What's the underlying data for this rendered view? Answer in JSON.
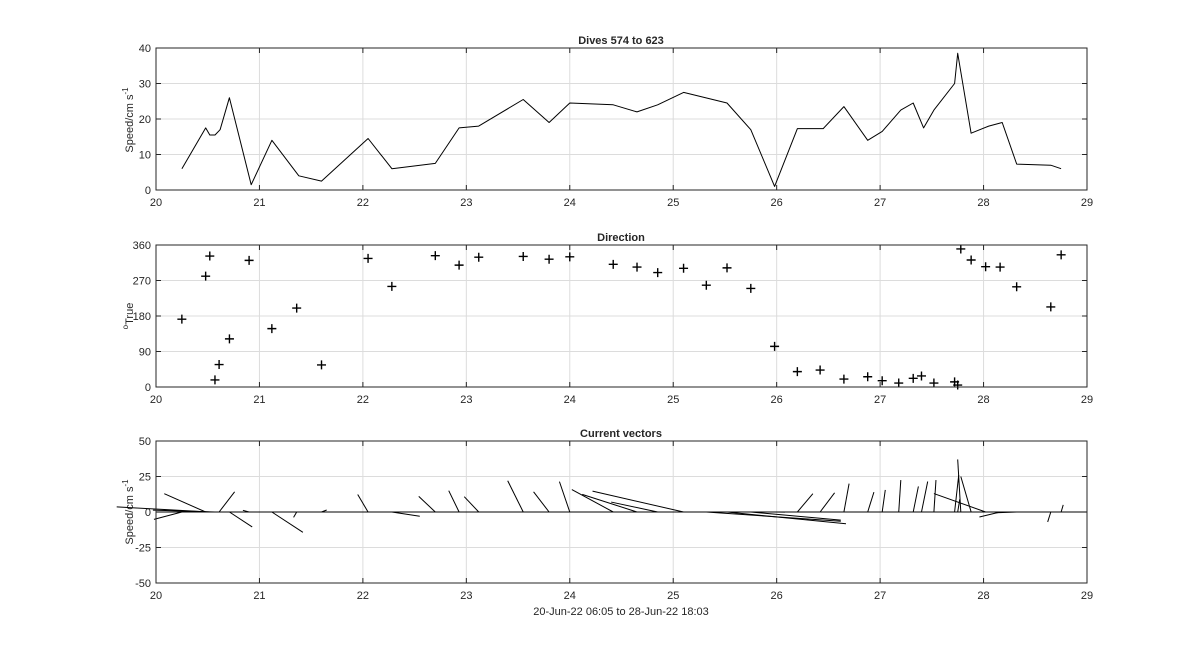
{
  "chart_data": [
    {
      "type": "line",
      "title": "Dives 574 to 623",
      "ylabel": "Speed/cm s",
      "ylabel_superscript": "-1",
      "xlabel": "",
      "xlim": [
        20,
        29
      ],
      "ylim": [
        0,
        40
      ],
      "xticks": [
        "20",
        "21",
        "22",
        "23",
        "24",
        "25",
        "26",
        "27",
        "28",
        "29"
      ],
      "yticks": [
        "0",
        "10",
        "20",
        "30",
        "40"
      ],
      "grid": true,
      "color": "#000000",
      "x": [
        20.25,
        20.48,
        20.52,
        20.57,
        20.62,
        20.71,
        20.92,
        21.12,
        21.38,
        21.6,
        22.05,
        22.28,
        22.7,
        22.93,
        23.12,
        23.55,
        23.8,
        24.0,
        24.42,
        24.65,
        24.85,
        25.1,
        25.52,
        25.75,
        25.98,
        26.2,
        26.45,
        26.65,
        26.88,
        27.02,
        27.2,
        27.32,
        27.42,
        27.52,
        27.72,
        27.75,
        27.88,
        28.05,
        28.18,
        28.32,
        28.65,
        28.75
      ],
      "y": [
        6,
        17.5,
        15.5,
        15.5,
        17,
        26,
        1.5,
        14,
        4,
        2.5,
        14.5,
        6,
        7.5,
        17.5,
        18,
        25.5,
        19,
        24.5,
        24,
        22,
        24,
        27.5,
        24.5,
        17,
        1,
        17.3,
        17.3,
        23.5,
        14,
        16.5,
        22.5,
        24.5,
        17.5,
        22.5,
        30,
        38.5,
        16,
        18,
        19,
        7.3,
        7,
        6
      ]
    },
    {
      "type": "scatter",
      "title": "Direction",
      "ylabel": "True",
      "ylabel_prefix": "o",
      "xlabel": "",
      "xlim": [
        20,
        29
      ],
      "ylim": [
        0,
        360
      ],
      "xticks": [
        "20",
        "21",
        "22",
        "23",
        "24",
        "25",
        "26",
        "27",
        "28",
        "29"
      ],
      "yticks": [
        "0",
        "90",
        "180",
        "270",
        "360"
      ],
      "grid": true,
      "marker": "+",
      "color": "#000000",
      "x": [
        20.25,
        20.48,
        20.52,
        20.57,
        20.61,
        20.71,
        20.9,
        21.12,
        21.36,
        21.6,
        22.05,
        22.28,
        22.7,
        22.93,
        23.12,
        23.55,
        23.8,
        24.0,
        24.42,
        24.65,
        24.85,
        25.1,
        25.32,
        25.52,
        25.75,
        25.98,
        26.2,
        26.42,
        26.65,
        26.88,
        27.02,
        27.18,
        27.32,
        27.4,
        27.52,
        27.72,
        27.75,
        27.78,
        27.88,
        28.02,
        28.16,
        28.32,
        28.65,
        28.75
      ],
      "y": [
        172,
        281,
        332,
        18,
        57,
        122,
        321,
        148,
        200,
        56,
        326,
        255,
        333,
        309,
        329,
        331,
        324,
        330,
        311,
        304,
        290,
        301,
        258,
        302,
        250,
        103,
        39,
        43,
        20,
        26,
        16,
        10,
        22,
        28,
        10,
        13,
        5,
        350,
        322,
        305,
        304,
        254,
        203,
        335
      ]
    },
    {
      "type": "line",
      "subtype": "vector-stick",
      "title": "Current vectors",
      "ylabel": "Speed/cm s",
      "ylabel_superscript": "-1",
      "xlabel": "20-Jun-22 06:05 to 28-Jun-22 18:03",
      "xlim": [
        20,
        29
      ],
      "ylim": [
        -50,
        50
      ],
      "xticks": [
        "20",
        "21",
        "22",
        "23",
        "24",
        "25",
        "26",
        "27",
        "28",
        "29"
      ],
      "yticks": [
        "-50",
        "-25",
        "0",
        "25",
        "50"
      ],
      "grid": true,
      "color": "#000000",
      "vectors": [
        {
          "x": 20.25,
          "u": -0.27,
          "v": -5.2
        },
        {
          "x": 20.48,
          "u": -0.4,
          "v": 12.9
        },
        {
          "x": 20.52,
          "u": -0.9,
          "v": 3.6
        },
        {
          "x": 20.57,
          "u": -0.6,
          "v": 1.3
        },
        {
          "x": 20.61,
          "u": 0.15,
          "v": 14.2
        },
        {
          "x": 20.71,
          "u": 0.22,
          "v": -10.5
        },
        {
          "x": 20.9,
          "u": -0.06,
          "v": 1.2
        },
        {
          "x": 21.12,
          "u": 0.3,
          "v": -14.3
        },
        {
          "x": 21.36,
          "u": -0.03,
          "v": -3.8
        },
        {
          "x": 21.6,
          "u": 0.05,
          "v": 1.4
        },
        {
          "x": 22.05,
          "u": -0.1,
          "v": 12.3
        },
        {
          "x": 22.28,
          "u": 0.27,
          "v": -3.0
        },
        {
          "x": 22.7,
          "u": -0.16,
          "v": 11.0
        },
        {
          "x": 22.93,
          "u": -0.1,
          "v": 15.0
        },
        {
          "x": 23.12,
          "u": -0.14,
          "v": 10.8
        },
        {
          "x": 23.55,
          "u": -0.15,
          "v": 22.0
        },
        {
          "x": 23.8,
          "u": -0.15,
          "v": 14.2
        },
        {
          "x": 24.0,
          "u": -0.1,
          "v": 21.4
        },
        {
          "x": 24.42,
          "u": -0.4,
          "v": 15.8
        },
        {
          "x": 24.65,
          "u": -0.53,
          "v": 12.4
        },
        {
          "x": 24.85,
          "u": -0.45,
          "v": 7.0
        },
        {
          "x": 25.1,
          "u": -0.88,
          "v": 14.7
        },
        {
          "x": 25.32,
          "u": 1.3,
          "v": -6.5
        },
        {
          "x": 25.52,
          "u": 1.15,
          "v": -8.3
        },
        {
          "x": 25.75,
          "u": 0.87,
          "v": -5.7
        },
        {
          "x": 25.98,
          "u": 0.1,
          "v": -0.1
        },
        {
          "x": 26.2,
          "u": 0.15,
          "v": 12.9
        },
        {
          "x": 26.42,
          "u": 0.14,
          "v": 13.5
        },
        {
          "x": 26.65,
          "u": 0.05,
          "v": 20.0
        },
        {
          "x": 26.88,
          "u": 0.06,
          "v": 14.0
        },
        {
          "x": 27.02,
          "u": 0.03,
          "v": 15.5
        },
        {
          "x": 27.18,
          "u": 0.02,
          "v": 22.5
        },
        {
          "x": 27.32,
          "u": 0.05,
          "v": 18.0
        },
        {
          "x": 27.4,
          "u": 0.06,
          "v": 21.5
        },
        {
          "x": 27.52,
          "u": 0.02,
          "v": 22.5
        },
        {
          "x": 27.72,
          "u": 0.04,
          "v": 26.0
        },
        {
          "x": 27.75,
          "u": 0.02,
          "v": 9.0
        },
        {
          "x": 27.78,
          "u": -0.03,
          "v": 37.0
        },
        {
          "x": 27.88,
          "u": -0.1,
          "v": 25.0
        },
        {
          "x": 28.02,
          "u": -0.5,
          "v": 13.0
        },
        {
          "x": 28.16,
          "u": -0.2,
          "v": -3.5
        },
        {
          "x": 28.32,
          "u": -0.2,
          "v": -0.5
        },
        {
          "x": 28.65,
          "u": -0.03,
          "v": -7.0
        },
        {
          "x": 28.75,
          "u": 0.02,
          "v": 5.0
        }
      ]
    }
  ]
}
